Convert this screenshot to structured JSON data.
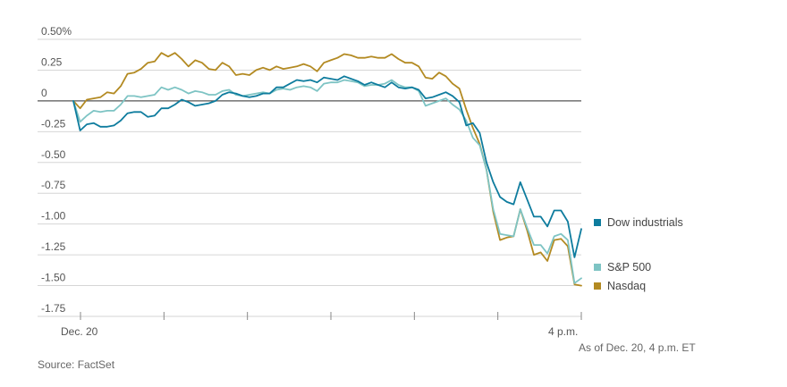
{
  "chart_data": {
    "type": "line",
    "title": "",
    "xlabel": "",
    "ylabel": "",
    "ylim": [
      -1.75,
      0.5
    ],
    "y_ticks": [
      0.5,
      0.25,
      0,
      -0.25,
      -0.5,
      -0.75,
      -1.0,
      -1.25,
      -1.5,
      -1.75
    ],
    "y_tick_labels": [
      "0.50%",
      "0.25",
      "0",
      "-0.25",
      "-0.50",
      "-0.75",
      "-1.00",
      "-1.25",
      "-1.50",
      "-1.75"
    ],
    "x_start_label": "Dec. 20",
    "x_end_label": "4 p.m.",
    "x_minor_ticks": 7,
    "grid": true,
    "legend_position": "right",
    "colors": {
      "dow": "#0e7c9e",
      "sp500": "#7ec4c4",
      "nasdaq": "#b38a22",
      "grid": "#d6d6d6",
      "zero": "#555555"
    },
    "series": [
      {
        "name": "Dow industrials",
        "key": "dow",
        "values": [
          0.0,
          -0.24,
          -0.19,
          -0.18,
          -0.21,
          -0.21,
          -0.2,
          -0.16,
          -0.1,
          -0.09,
          -0.09,
          -0.13,
          -0.12,
          -0.06,
          -0.06,
          -0.03,
          0.01,
          -0.01,
          -0.04,
          -0.03,
          -0.02,
          0.0,
          0.05,
          0.07,
          0.06,
          0.04,
          0.03,
          0.04,
          0.06,
          0.06,
          0.11,
          0.11,
          0.14,
          0.17,
          0.16,
          0.17,
          0.15,
          0.19,
          0.18,
          0.17,
          0.2,
          0.18,
          0.16,
          0.13,
          0.15,
          0.13,
          0.11,
          0.15,
          0.11,
          0.1,
          0.11,
          0.09,
          0.02,
          0.03,
          0.05,
          0.07,
          0.04,
          -0.01,
          -0.2,
          -0.18,
          -0.26,
          -0.5,
          -0.66,
          -0.78,
          -0.82,
          -0.84,
          -0.66,
          -0.8,
          -0.94,
          -0.94,
          -1.02,
          -0.89,
          -0.89,
          -0.98,
          -1.27,
          -1.04
        ]
      },
      {
        "name": "S&P 500",
        "key": "sp500",
        "values": [
          0.0,
          -0.17,
          -0.12,
          -0.08,
          -0.09,
          -0.08,
          -0.08,
          -0.03,
          0.04,
          0.04,
          0.03,
          0.04,
          0.05,
          0.11,
          0.09,
          0.11,
          0.09,
          0.06,
          0.08,
          0.07,
          0.05,
          0.05,
          0.08,
          0.09,
          0.05,
          0.04,
          0.05,
          0.06,
          0.07,
          0.06,
          0.09,
          0.1,
          0.09,
          0.11,
          0.12,
          0.11,
          0.08,
          0.14,
          0.15,
          0.15,
          0.17,
          0.16,
          0.15,
          0.12,
          0.13,
          0.13,
          0.14,
          0.17,
          0.13,
          0.11,
          0.11,
          0.08,
          -0.04,
          -0.02,
          0.0,
          0.02,
          -0.03,
          -0.07,
          -0.16,
          -0.3,
          -0.36,
          -0.56,
          -0.88,
          -1.08,
          -1.09,
          -1.1,
          -0.88,
          -1.03,
          -1.17,
          -1.17,
          -1.24,
          -1.1,
          -1.08,
          -1.13,
          -1.48,
          -1.44
        ]
      },
      {
        "name": "Nasdaq",
        "key": "nasdaq",
        "values": [
          0.0,
          -0.06,
          0.01,
          0.02,
          0.03,
          0.07,
          0.06,
          0.12,
          0.22,
          0.23,
          0.26,
          0.31,
          0.32,
          0.39,
          0.36,
          0.39,
          0.34,
          0.28,
          0.33,
          0.31,
          0.26,
          0.25,
          0.31,
          0.28,
          0.21,
          0.22,
          0.21,
          0.25,
          0.27,
          0.25,
          0.28,
          0.26,
          0.27,
          0.28,
          0.3,
          0.28,
          0.24,
          0.31,
          0.33,
          0.35,
          0.38,
          0.37,
          0.35,
          0.35,
          0.36,
          0.35,
          0.35,
          0.38,
          0.34,
          0.31,
          0.31,
          0.28,
          0.19,
          0.18,
          0.23,
          0.2,
          0.14,
          0.1,
          -0.07,
          -0.22,
          -0.35,
          -0.56,
          -0.9,
          -1.13,
          -1.11,
          -1.1,
          -0.88,
          -1.05,
          -1.25,
          -1.23,
          -1.3,
          -1.13,
          -1.12,
          -1.18,
          -1.49,
          -1.5
        ]
      }
    ]
  },
  "footer": {
    "as_of": "As of Dec. 20, 4 p.m. ET",
    "source": "Source: FactSet"
  }
}
